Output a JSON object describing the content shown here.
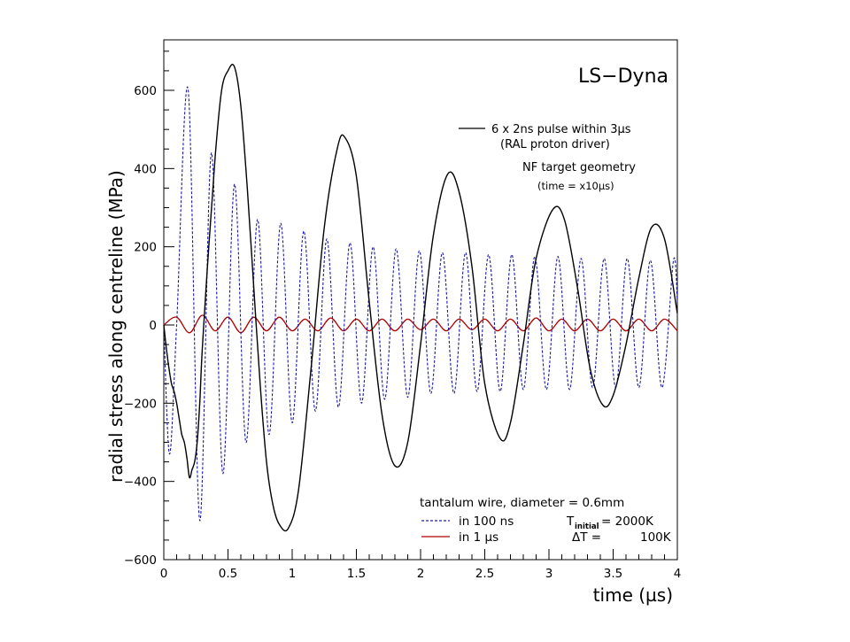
{
  "chart_data": {
    "type": "line",
    "title": "LS−Dyna",
    "xlabel": "time (µs)",
    "ylabel": "radial stress along centreline (MPa)",
    "xlim": [
      0,
      4
    ],
    "ylim": [
      -600,
      700
    ],
    "x_ticks": [
      0,
      0.5,
      1,
      1.5,
      2,
      2.5,
      3,
      3.5,
      4
    ],
    "x_tick_labels": [
      "0",
      "0.5",
      "1",
      "1.5",
      "2",
      "2.5",
      "3",
      "3.5",
      "4"
    ],
    "y_ticks": [
      -600,
      -400,
      -200,
      0,
      200,
      400,
      600
    ],
    "y_tick_labels": [
      "−600",
      "−400",
      "−200",
      "0",
      "200",
      "400",
      "600"
    ],
    "grid": false,
    "colors": {
      "solid": "#000000",
      "dashed": "#1a1aa0",
      "red": "#b00000"
    },
    "annotations": {
      "solid_legend_line1": "6 x 2ns pulse within 3µs",
      "solid_legend_line2": "(RAL proton driver)",
      "geometry_line1": "NF target geometry",
      "geometry_line2": "(time = x10µs)",
      "wire_label": "tantalum wire, diameter = 0.6mm",
      "dashed_legend": "in 100 ns",
      "red_legend": "in 1 µs",
      "t_initial_prefix": "T",
      "t_initial_sub": "initial",
      "t_initial_value": "= 2000K",
      "delta_t": "ΔT =",
      "delta_t_value": "100K"
    },
    "series": [
      {
        "style": "solid",
        "x": [
          0,
          0.02,
          0.04,
          0.06,
          0.08,
          0.1,
          0.12,
          0.14,
          0.16,
          0.18,
          0.2,
          0.22,
          0.24,
          0.26,
          0.28,
          0.3,
          0.35,
          0.4,
          0.45,
          0.5,
          0.55,
          0.6,
          0.65,
          0.7,
          0.75,
          0.8,
          0.85,
          0.9,
          0.97,
          1.05,
          1.15,
          1.25,
          1.35,
          1.41,
          1.5,
          1.6,
          1.7,
          1.8,
          1.9,
          2.0,
          2.1,
          2.21,
          2.3,
          2.4,
          2.5,
          2.62,
          2.7,
          2.8,
          2.9,
          3.03,
          3.12,
          3.22,
          3.32,
          3.42,
          3.5,
          3.6,
          3.7,
          3.8,
          3.9,
          4.0
        ],
        "y": [
          0,
          -60,
          -110,
          -150,
          -170,
          -200,
          -240,
          -280,
          -300,
          -340,
          -390,
          -370,
          -350,
          -300,
          -200,
          -60,
          200,
          430,
          600,
          650,
          660,
          560,
          350,
          100,
          -150,
          -350,
          -460,
          -510,
          -520,
          -420,
          -100,
          250,
          450,
          480,
          380,
          60,
          -230,
          -360,
          -300,
          -50,
          230,
          385,
          340,
          150,
          -150,
          -290,
          -250,
          -50,
          170,
          295,
          270,
          100,
          -110,
          -205,
          -180,
          -50,
          120,
          250,
          220,
          30
        ]
      },
      {
        "style": "dashed",
        "x": [
          0,
          0.045,
          0.1,
          0.19,
          0.28,
          0.37,
          0.46,
          0.55,
          0.64,
          0.73,
          0.82,
          0.91,
          1.0,
          1.09,
          1.18,
          1.27,
          1.36,
          1.45,
          1.54,
          1.63,
          1.72,
          1.81,
          1.9,
          1.99,
          2.08,
          2.17,
          2.26,
          2.35,
          2.44,
          2.53,
          2.62,
          2.71,
          2.8,
          2.89,
          2.98,
          3.07,
          3.16,
          3.25,
          3.34,
          3.43,
          3.52,
          3.61,
          3.7,
          3.79,
          3.88,
          3.97,
          4.0
        ],
        "y": [
          0,
          -330,
          0,
          600,
          -500,
          440,
          -380,
          360,
          -300,
          270,
          -280,
          260,
          -250,
          240,
          -220,
          220,
          -210,
          210,
          -200,
          200,
          -190,
          195,
          -185,
          190,
          -175,
          185,
          -175,
          185,
          -170,
          180,
          -170,
          180,
          -165,
          175,
          -165,
          175,
          -165,
          170,
          -160,
          170,
          -160,
          170,
          -160,
          165,
          -160,
          165,
          60
        ]
      },
      {
        "style": "red",
        "x": [
          0,
          0.1,
          0.2,
          0.3,
          0.4,
          0.5,
          0.6,
          0.7,
          0.8,
          0.9,
          1.0,
          1.1,
          1.2,
          1.3,
          1.4,
          1.5,
          1.6,
          1.7,
          1.8,
          1.9,
          2.0,
          2.1,
          2.2,
          2.3,
          2.4,
          2.5,
          2.6,
          2.7,
          2.8,
          2.9,
          3.0,
          3.1,
          3.2,
          3.3,
          3.4,
          3.5,
          3.6,
          3.7,
          3.8,
          3.9,
          4.0
        ],
        "y": [
          0,
          20,
          -20,
          25,
          -15,
          20,
          -20,
          20,
          -15,
          20,
          -15,
          15,
          -15,
          18,
          -15,
          15,
          -15,
          15,
          -15,
          15,
          -12,
          15,
          -15,
          15,
          -12,
          15,
          -15,
          15,
          -15,
          18,
          -15,
          15,
          -15,
          15,
          -15,
          15,
          -15,
          15,
          -15,
          15,
          -15
        ]
      }
    ]
  }
}
